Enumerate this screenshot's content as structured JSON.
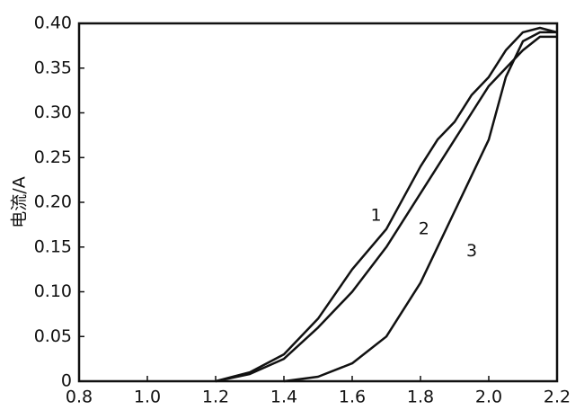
{
  "chart_data": {
    "type": "line",
    "y_label": "电流/A",
    "x": [
      1.2,
      1.3,
      1.4,
      1.5,
      1.6,
      1.7,
      1.8,
      1.85,
      1.9,
      1.95,
      2.0,
      2.05,
      2.1,
      2.15,
      2.2
    ],
    "series": [
      {
        "name": "1",
        "color": "#111111",
        "values": [
          0,
          0.01,
          0.03,
          0.07,
          0.125,
          0.17,
          0.24,
          0.27,
          0.29,
          0.32,
          0.34,
          0.37,
          0.39,
          0.395,
          0.39
        ],
        "label_at": [
          1.67,
          0.185
        ]
      },
      {
        "name": "2",
        "color": "#111111",
        "values": [
          0,
          0.008,
          0.025,
          0.06,
          0.1,
          0.15,
          0.21,
          0.24,
          0.27,
          0.3,
          0.33,
          0.35,
          0.37,
          0.385,
          0.385
        ],
        "label_at": [
          1.81,
          0.17
        ]
      },
      {
        "name": "3",
        "color": "#111111",
        "values": [
          null,
          null,
          0,
          0.005,
          0.02,
          0.05,
          0.11,
          0.15,
          0.19,
          0.23,
          0.27,
          0.34,
          0.38,
          0.39,
          0.39
        ],
        "label_at": [
          1.95,
          0.145
        ]
      }
    ],
    "xlim": [
      0.8,
      2.2
    ],
    "ylim": [
      0,
      0.4
    ],
    "xticks": [
      0.8,
      {
        "value": 1.0,
        "label": "1.0"
      },
      1.2,
      1.4,
      1.6,
      1.8,
      {
        "value": 2.0,
        "label": "2.0"
      },
      2.2
    ],
    "yticks": [
      0,
      0.05,
      {
        "value": 0.1,
        "label": "0.10"
      },
      0.15,
      {
        "value": 0.2,
        "label": "0.20"
      },
      0.25,
      {
        "value": 0.3,
        "label": "0.30"
      },
      0.35,
      {
        "value": 0.4,
        "label": "0.40"
      }
    ]
  }
}
